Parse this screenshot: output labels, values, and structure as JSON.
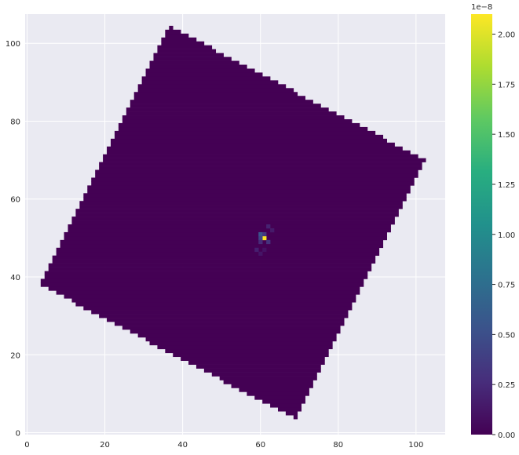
{
  "chart_data": {
    "type": "heatmap",
    "title": "",
    "xlabel": "",
    "ylabel": "",
    "xlim": [
      -0.5,
      107.5
    ],
    "ylim": [
      -0.5,
      107.5
    ],
    "x_ticks": [
      "0",
      "20",
      "40",
      "60",
      "80",
      "100"
    ],
    "x_tick_values": [
      0,
      20,
      40,
      60,
      80,
      100
    ],
    "y_ticks": [
      "0",
      "20",
      "40",
      "60",
      "80",
      "100"
    ],
    "y_tick_values": [
      0,
      20,
      40,
      60,
      80,
      100
    ],
    "grid": true,
    "background_color": "#eaeaf2",
    "colormap": "viridis",
    "colorbar": {
      "range": [
        0,
        2.1e-08
      ],
      "exponent_label": "1e−8",
      "tick_labels": [
        "0.00",
        "0.25",
        "0.50",
        "0.75",
        "1.00",
        "1.25",
        "1.50",
        "1.75",
        "2.00"
      ],
      "tick_values": [
        0,
        0.25,
        0.5,
        0.75,
        1.0,
        1.25,
        1.5,
        1.75,
        2.0
      ]
    },
    "footprint": {
      "description": "rotated square region of near-zero values",
      "corners": [
        [
          36.5,
          104.5
        ],
        [
          102.5,
          70.0
        ],
        [
          69.0,
          3.5
        ],
        [
          3.5,
          38.0
        ]
      ],
      "value": 0
    },
    "hotspots": [
      {
        "x": 61,
        "y": 50,
        "value": 2.1e-08
      },
      {
        "x": 60,
        "y": 51,
        "value": 5.5e-09
      },
      {
        "x": 60,
        "y": 50,
        "value": 4.5e-09
      },
      {
        "x": 61,
        "y": 51,
        "value": 3.5e-09
      },
      {
        "x": 62,
        "y": 49,
        "value": 3e-09
      },
      {
        "x": 60,
        "y": 49,
        "value": 2.5e-09
      },
      {
        "x": 62,
        "y": 53,
        "value": 2e-09
      },
      {
        "x": 63,
        "y": 52,
        "value": 1.5e-09
      },
      {
        "x": 59,
        "y": 47,
        "value": 1.8e-09
      },
      {
        "x": 60,
        "y": 46,
        "value": 1.2e-09
      },
      {
        "x": 61,
        "y": 47,
        "value": 1e-09
      }
    ]
  }
}
